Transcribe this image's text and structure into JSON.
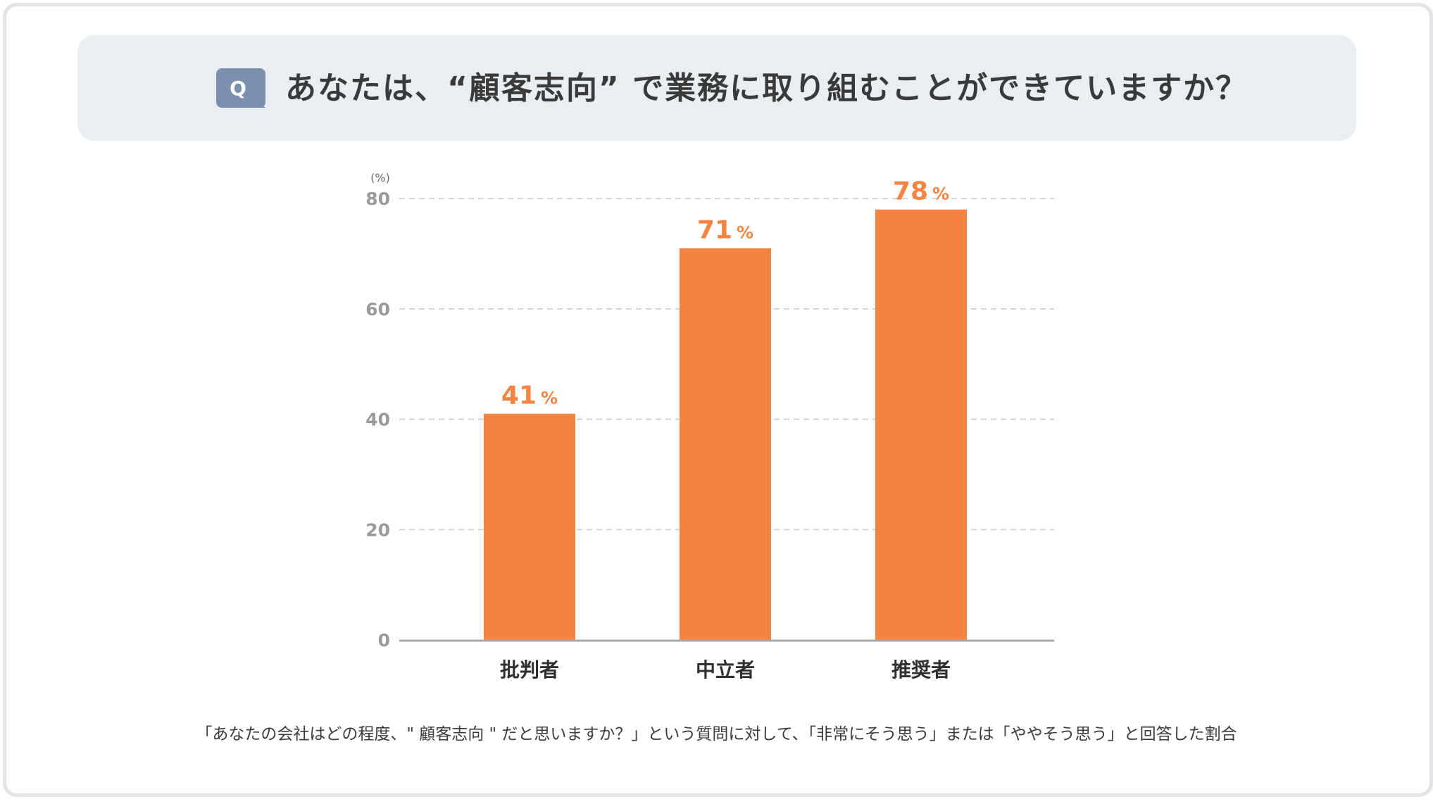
{
  "header": {
    "badge": "Q",
    "question": "あなたは、“顧客志向” で業務に取り組むことができていますか？"
  },
  "chart_data": {
    "type": "bar",
    "categories": [
      "批判者",
      "中立者",
      "推奨者"
    ],
    "values": [
      41,
      71,
      78
    ],
    "unit_label": "(%)",
    "value_suffix": "%",
    "ylim": [
      0,
      80
    ],
    "yticks": [
      0,
      20,
      40,
      60,
      80
    ],
    "grid": true,
    "bar_color": "#f58442"
  },
  "footnote": "「あなたの会社はどの程度、\" 顧客志向 \" だと思いますか？」という質問に対して、「非常にそう思う」または「ややそう思う」と回答した割合"
}
